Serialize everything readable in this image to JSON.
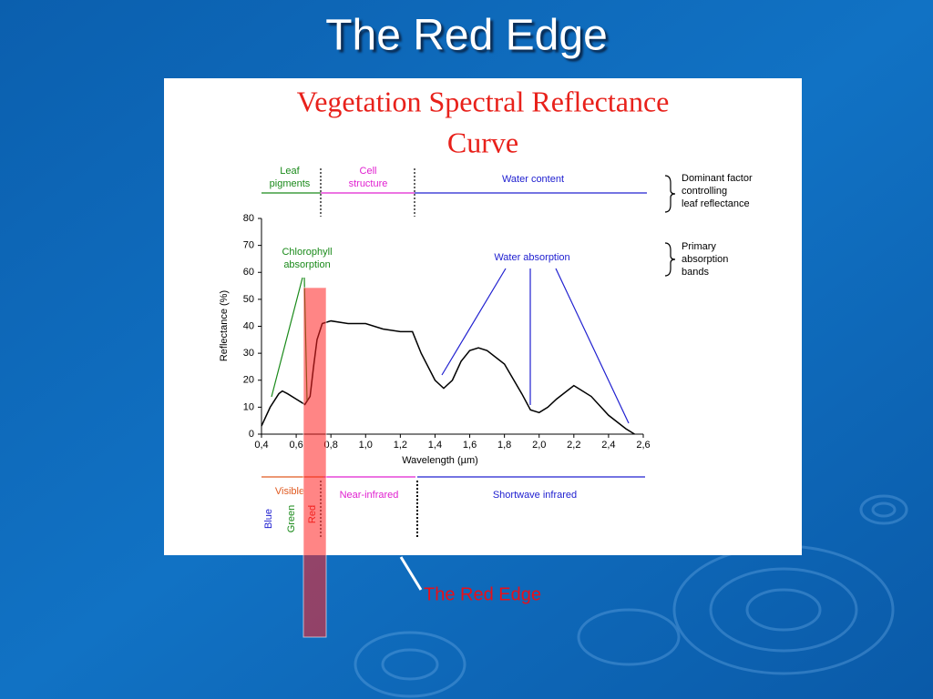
{
  "slide": {
    "title": "The Red Edge",
    "callout": "The Red Edge"
  },
  "chart_data": {
    "type": "line",
    "title_lines": [
      "Vegetation Spectral Reflectance",
      "Curve"
    ],
    "xlabel": "Wavelength (µm)",
    "ylabel": "Reflectance (%)",
    "x": [
      0.4,
      0.45,
      0.5,
      0.52,
      0.55,
      0.6,
      0.65,
      0.68,
      0.7,
      0.72,
      0.75,
      0.8,
      0.9,
      1.0,
      1.1,
      1.2,
      1.27,
      1.32,
      1.4,
      1.45,
      1.5,
      1.55,
      1.6,
      1.65,
      1.7,
      1.8,
      1.9,
      1.95,
      2.0,
      2.05,
      2.1,
      2.2,
      2.3,
      2.4,
      2.5,
      2.55
    ],
    "values": [
      3,
      10,
      15,
      16,
      15,
      13,
      11,
      14,
      25,
      35,
      41,
      42,
      41,
      41,
      39,
      38,
      38,
      30,
      20,
      17,
      20,
      27,
      31,
      32,
      31,
      26,
      15,
      9,
      8,
      10,
      13,
      18,
      14,
      7,
      2,
      0
    ],
    "color": "#000000",
    "xlim": [
      0.4,
      2.6
    ],
    "ylim": [
      0,
      80
    ],
    "xticks": [
      {
        "value": 0.4,
        "label": "0,4"
      },
      {
        "value": 0.6,
        "label": "0,6"
      },
      {
        "value": 0.8,
        "label": "0,8"
      },
      {
        "value": 1.0,
        "label": "1,0"
      },
      {
        "value": 1.2,
        "label": "1,2"
      },
      {
        "value": 1.4,
        "label": "1,4"
      },
      {
        "value": 1.6,
        "label": "1,6"
      },
      {
        "value": 1.8,
        "label": "1,8"
      },
      {
        "value": 2.0,
        "label": "2,0"
      },
      {
        "value": 2.2,
        "label": "2,2"
      },
      {
        "value": 2.4,
        "label": "2,4"
      },
      {
        "value": 2.6,
        "label": "2,6"
      }
    ],
    "yticks": [
      0,
      10,
      20,
      30,
      40,
      50,
      60,
      70,
      80
    ],
    "annotations": [
      {
        "lines": [
          "Leaf",
          "pigments"
        ],
        "color": "#1a8a1a"
      },
      {
        "lines": [
          "Cell",
          "structure"
        ],
        "color": "#e020d0"
      },
      {
        "lines": [
          "Water content"
        ],
        "color": "#2020d0"
      },
      {
        "lines": [
          "Dominant factor",
          "controlling",
          "leaf reflectance"
        ],
        "color": "#000000"
      },
      {
        "lines": [
          "Chlorophyll",
          "absorption"
        ],
        "color": "#1a8a1a"
      },
      {
        "lines": [
          "Water absorption"
        ],
        "color": "#2020d0"
      },
      {
        "lines": [
          "Primary",
          "absorption",
          "bands"
        ],
        "color": "#000000"
      },
      {
        "lines": [
          "Visible"
        ],
        "color": "#e05a20"
      },
      {
        "lines": [
          "Near-infrared"
        ],
        "color": "#e020d0"
      },
      {
        "lines": [
          "Shortwave infrared"
        ],
        "color": "#2020d0"
      }
    ],
    "band_labels": [
      {
        "text": "Blue",
        "color": "#2020d0"
      },
      {
        "text": "Green",
        "color": "#1a8a1a"
      },
      {
        "text": "Red",
        "color": "#e0201a"
      }
    ]
  }
}
